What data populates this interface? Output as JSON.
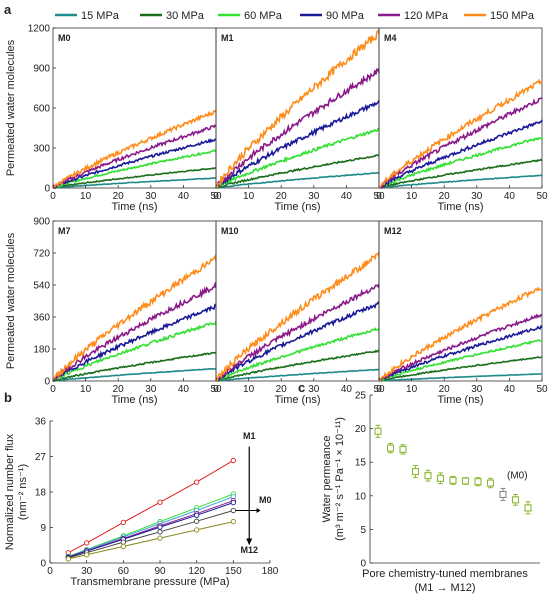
{
  "panel_letters": {
    "a": "a",
    "b": "b",
    "c": "c"
  },
  "legend": [
    {
      "label": "15 MPa",
      "color": "#1f8a8a"
    },
    {
      "label": "30 MPa",
      "color": "#1b6e1b"
    },
    {
      "label": "60 MPa",
      "color": "#33e033"
    },
    {
      "label": "90 MPa",
      "color": "#1a1a99"
    },
    {
      "label": "120 MPa",
      "color": "#8a1a8a"
    },
    {
      "label": "150 MPa",
      "color": "#ff8c1a"
    }
  ],
  "chart_data": [
    {
      "type": "line",
      "panel": "M0",
      "xlabel": "Time (ns)",
      "ylabel": "Permeated water molecules",
      "xlim": [
        0,
        50
      ],
      "ylim": [
        0,
        1200
      ],
      "xticks": [
        0,
        10,
        20,
        30,
        40,
        50
      ],
      "yticks": [
        0,
        300,
        600,
        900,
        1200
      ],
      "series_end_values": {
        "15 MPa": 75,
        "30 MPa": 150,
        "60 MPa": 280,
        "90 MPa": 365,
        "120 MPa": 465,
        "150 MPa": 575
      }
    },
    {
      "type": "line",
      "panel": "M1",
      "xlabel": "Time (ns)",
      "xlim": [
        0,
        50
      ],
      "ylim": [
        0,
        1200
      ],
      "xticks": [
        0,
        10,
        20,
        30,
        40,
        50
      ],
      "series_end_values": {
        "15 MPa": 115,
        "30 MPa": 245,
        "60 MPa": 440,
        "90 MPa": 645,
        "120 MPa": 880,
        "150 MPa": 1160
      }
    },
    {
      "type": "line",
      "panel": "M4",
      "xlabel": "Time (ns)",
      "xlim": [
        0,
        50
      ],
      "ylim": [
        0,
        1200
      ],
      "xticks": [
        0,
        10,
        20,
        30,
        40,
        50
      ],
      "series_end_values": {
        "15 MPa": 95,
        "30 MPa": 210,
        "60 MPa": 380,
        "90 MPa": 500,
        "120 MPa": 670,
        "150 MPa": 800
      }
    },
    {
      "type": "line",
      "panel": "M7",
      "xlabel": "Time (ns)",
      "ylabel": "Permeated water molecules",
      "xlim": [
        0,
        50
      ],
      "ylim": [
        0,
        900
      ],
      "xticks": [
        0,
        10,
        20,
        30,
        40,
        50
      ],
      "yticks": [
        0,
        180,
        360,
        540,
        720,
        900
      ],
      "series_end_values": {
        "15 MPa": 70,
        "30 MPa": 160,
        "60 MPa": 330,
        "90 MPa": 420,
        "120 MPa": 535,
        "150 MPa": 690
      }
    },
    {
      "type": "line",
      "panel": "M10",
      "xlabel": "Time (ns)",
      "xlim": [
        0,
        50
      ],
      "ylim": [
        0,
        900
      ],
      "xticks": [
        0,
        10,
        20,
        30,
        40,
        50
      ],
      "series_end_values": {
        "15 MPa": 65,
        "30 MPa": 170,
        "60 MPa": 295,
        "90 MPa": 435,
        "120 MPa": 540,
        "150 MPa": 710
      }
    },
    {
      "type": "line",
      "panel": "M12",
      "xlabel": "Time (ns)",
      "xlim": [
        0,
        50
      ],
      "ylim": [
        0,
        900
      ],
      "xticks": [
        0,
        10,
        20,
        30,
        40,
        50
      ],
      "series_end_values": {
        "15 MPa": 40,
        "30 MPa": 135,
        "60 MPa": 230,
        "90 MPa": 305,
        "120 MPa": 375,
        "150 MPa": 530
      }
    },
    {
      "type": "line",
      "panel": "b",
      "xlabel": "Transmembrane pressure (MPa)",
      "ylabel_line1": "Normalized number flux",
      "ylabel_line2": "(nm⁻² ns⁻¹)",
      "xlim": [
        0,
        180
      ],
      "ylim": [
        0,
        36
      ],
      "xticks": [
        0,
        30,
        60,
        90,
        120,
        150,
        180
      ],
      "yticks": [
        0,
        9,
        18,
        27,
        36
      ],
      "x": [
        15,
        30,
        60,
        90,
        120,
        150
      ],
      "annotations": {
        "top": "M1",
        "mid": "M0",
        "bottom": "M12"
      },
      "series": [
        {
          "color": "#e02020",
          "values": [
            2.6,
            5.1,
            10.3,
            15.4,
            20.5,
            26.0
          ]
        },
        {
          "color": "#33e033",
          "values": [
            1.7,
            3.4,
            6.9,
            10.5,
            14.0,
            17.5
          ]
        },
        {
          "color": "#40a0e0",
          "values": [
            1.6,
            3.3,
            6.6,
            10.0,
            13.3,
            16.8
          ]
        },
        {
          "color": "#8a1a8a",
          "values": [
            1.5,
            3.1,
            6.2,
            9.4,
            12.5,
            15.8
          ]
        },
        {
          "color": "#1a1a99",
          "values": [
            1.45,
            3.0,
            6.0,
            9.1,
            12.1,
            15.3
          ]
        },
        {
          "color": "#444444",
          "values": [
            1.3,
            2.6,
            5.3,
            7.9,
            10.6,
            13.3
          ]
        },
        {
          "color": "#8a8a20",
          "values": [
            1.05,
            2.1,
            4.2,
            6.3,
            8.4,
            10.5
          ]
        }
      ]
    },
    {
      "type": "scatter",
      "panel": "c",
      "xlabel_line1": "Pore chemistry-tuned membranes",
      "xlabel_line2": "(M1 → M12)",
      "ylabel_line1": "Water permeance",
      "ylabel_line2": "(m³ m⁻² s⁻¹ Pa⁻¹ × 10⁻¹¹)",
      "ylim": [
        0,
        25
      ],
      "yticks": [
        0,
        5,
        10,
        15,
        20,
        25
      ],
      "m0_label": "(M0)",
      "points": [
        {
          "value": 19.6,
          "err": 0.9,
          "color": "#8cb832"
        },
        {
          "value": 17.1,
          "err": 0.7,
          "color": "#8cb832"
        },
        {
          "value": 16.9,
          "err": 0.7,
          "color": "#8cb832"
        },
        {
          "value": 13.6,
          "err": 0.9,
          "color": "#8cb832"
        },
        {
          "value": 13.0,
          "err": 0.8,
          "color": "#8cb832"
        },
        {
          "value": 12.6,
          "err": 0.8,
          "color": "#8cb832"
        },
        {
          "value": 12.3,
          "err": 0.6,
          "color": "#8cb832"
        },
        {
          "value": 12.2,
          "err": 0.5,
          "color": "#8cb832"
        },
        {
          "value": 12.1,
          "err": 0.6,
          "color": "#8cb832"
        },
        {
          "value": 11.9,
          "err": 0.7,
          "color": "#8cb832"
        },
        {
          "value": 10.2,
          "err": 0.9,
          "color": "#888888"
        },
        {
          "value": 9.4,
          "err": 0.8,
          "color": "#8cb832"
        },
        {
          "value": 8.2,
          "err": 0.9,
          "color": "#8cb832"
        }
      ]
    }
  ]
}
